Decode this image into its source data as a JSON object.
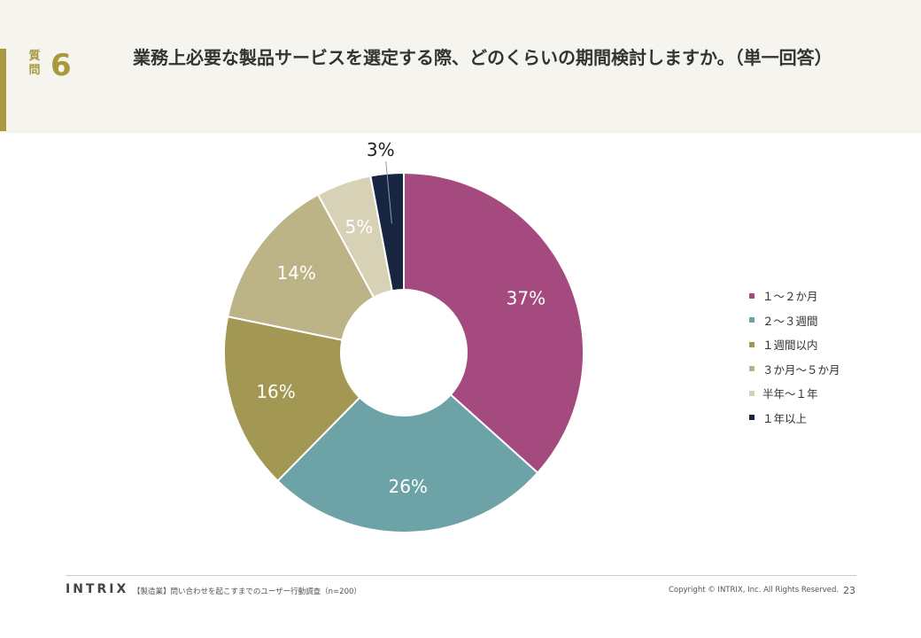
{
  "header": {
    "question_label": "質問",
    "question_number": "6",
    "question_text": "業務上必要な製品サービスを選定する際、どのくらいの期間検討しますか。（単一回答）"
  },
  "chart_data": {
    "type": "pie",
    "donut": true,
    "title": "",
    "legend_position": "right",
    "unit": "%",
    "slices": [
      {
        "label": "１～２か月",
        "value": 37,
        "color": "#a54a7f",
        "text_color": "#ffffff"
      },
      {
        "label": "２～３週間",
        "value": 26,
        "color": "#6da3a6",
        "text_color": "#ffffff"
      },
      {
        "label": "１週間以内",
        "value": 16,
        "color": "#a39853",
        "text_color": "#ffffff"
      },
      {
        "label": "３か月～５か月",
        "value": 14,
        "color": "#bcb386",
        "text_color": "#ffffff"
      },
      {
        "label": "半年～１年",
        "value": 5,
        "color": "#d7d1b6",
        "text_color": "#ffffff"
      },
      {
        "label": "１年以上",
        "value": 3,
        "color": "#172540",
        "text_color": "#222222"
      }
    ]
  },
  "footer": {
    "logo": "INTRIX",
    "survey": "【製造業】問い合わせを起こすまでのユーザー行動調査（n=200）",
    "copyright": "Copyright © INTRIX, Inc. All Rights Reserved.",
    "page": "23"
  }
}
